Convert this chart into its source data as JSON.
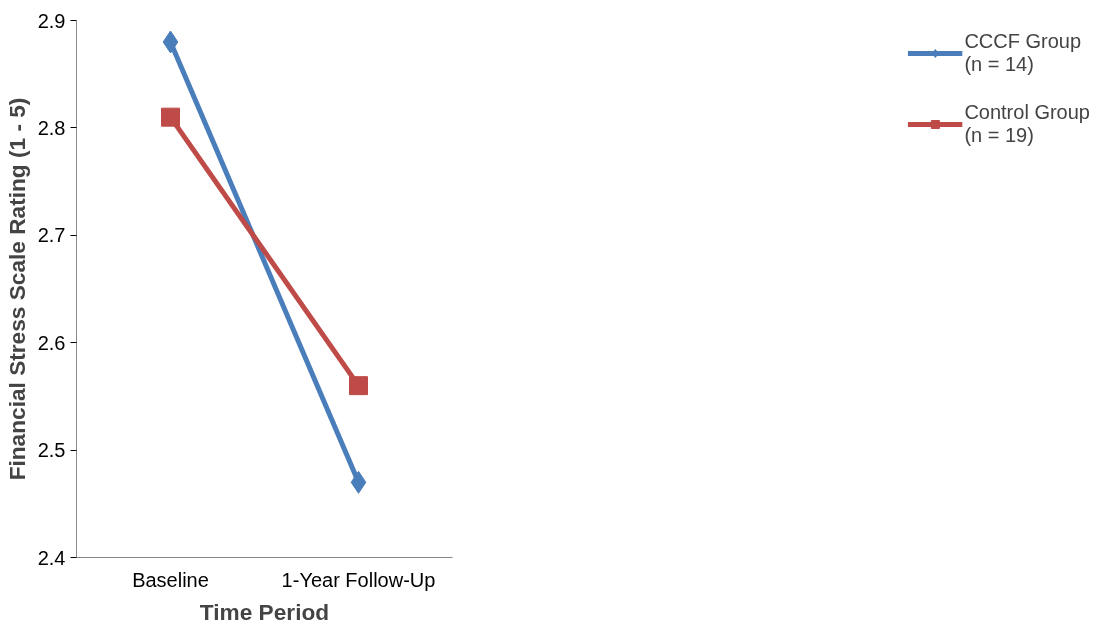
{
  "chart_data": {
    "type": "line",
    "xlabel": "Time Period",
    "ylabel": "Financial Stress Scale Rating (1 - 5)",
    "categories": [
      "Baseline",
      "1-Year Follow-Up"
    ],
    "series": [
      {
        "name": "CCCF Group (n = 14)",
        "color": "#4a7ebb",
        "values": [
          2.88,
          2.47
        ],
        "marker": "diamond"
      },
      {
        "name": "Control Group (n = 19)",
        "color": "#be4b48",
        "values": [
          2.81,
          2.56
        ],
        "marker": "square"
      }
    ],
    "ylim": [
      2.4,
      2.9
    ],
    "yticks": [
      2.4,
      2.5,
      2.6,
      2.7,
      2.8,
      2.9
    ],
    "grid": false,
    "legend": "right",
    "line_style": "solid"
  }
}
